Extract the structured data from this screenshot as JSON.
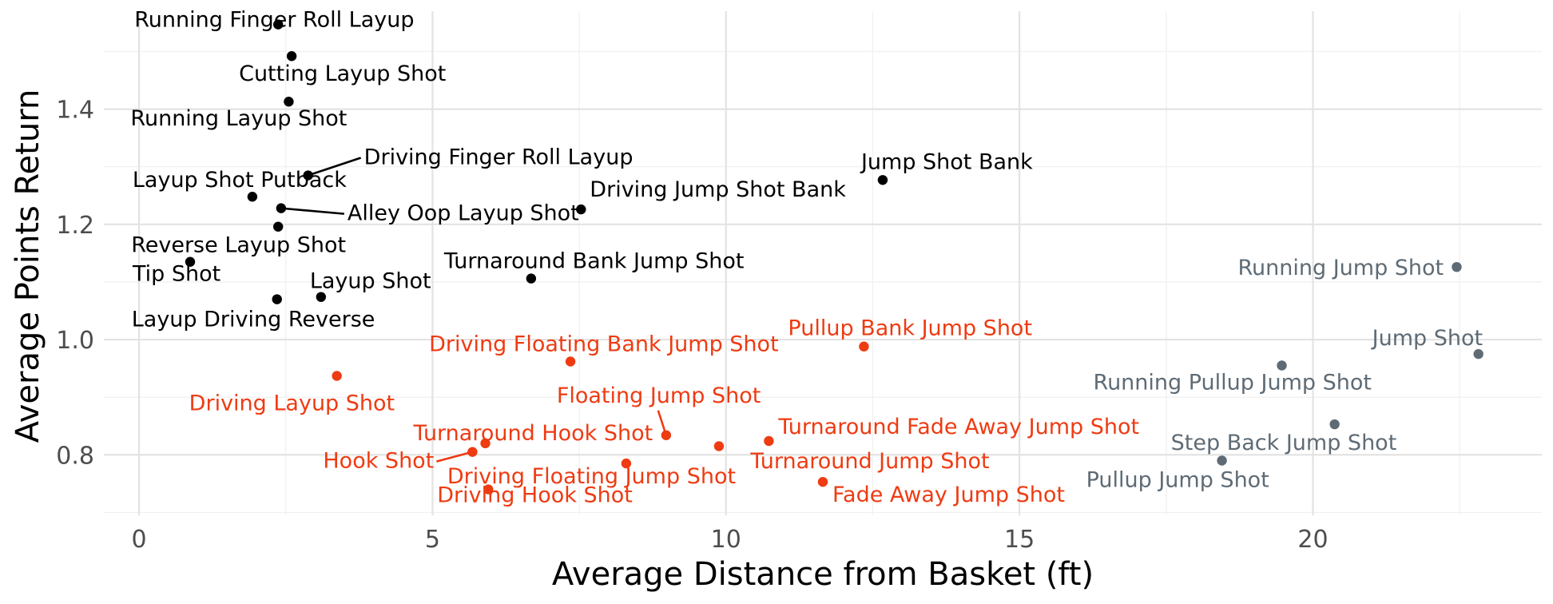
{
  "chart_data": {
    "type": "scatter",
    "xlabel": "Average Distance from Basket (ft)",
    "ylabel": "Average Points Return",
    "xlim": [
      -0.6,
      23.9
    ],
    "ylim": [
      0.695,
      1.57
    ],
    "x_ticks": [
      0,
      5,
      10,
      15,
      20
    ],
    "y_ticks": [
      0.8,
      1.0,
      1.2,
      1.4
    ],
    "x_tick_labels": [
      "0",
      "5",
      "10",
      "15",
      "20"
    ],
    "y_tick_labels": [
      "0.8",
      "1.0",
      "1.2",
      "1.4"
    ],
    "grid": true,
    "legend": "none",
    "group_colors": {
      "high": "#000000",
      "mid": "#ee3b12",
      "long": "#5e6b75"
    },
    "points": [
      {
        "label": "Running Finger Roll Layup",
        "x": 2.37,
        "y": 1.547,
        "group": "high"
      },
      {
        "label": "Cutting Layup Shot",
        "x": 2.6,
        "y": 1.492,
        "group": "high"
      },
      {
        "label": "Running Layup Shot",
        "x": 2.55,
        "y": 1.413,
        "group": "high"
      },
      {
        "label": "Driving Finger Roll Layup",
        "x": 2.88,
        "y": 1.285,
        "group": "high"
      },
      {
        "label": "Layup Shot Putback",
        "x": 1.93,
        "y": 1.248,
        "group": "high"
      },
      {
        "label": "Alley Oop Layup Shot",
        "x": 2.42,
        "y": 1.228,
        "group": "high"
      },
      {
        "label": "Reverse Layup Shot",
        "x": 2.37,
        "y": 1.196,
        "group": "high"
      },
      {
        "label": "Tip Shot",
        "x": 0.87,
        "y": 1.135,
        "group": "high"
      },
      {
        "label": "Layup Driving Reverse",
        "x": 2.35,
        "y": 1.07,
        "group": "high"
      },
      {
        "label": "Layup Shot",
        "x": 3.1,
        "y": 1.074,
        "group": "high"
      },
      {
        "label": "Driving Jump Shot Bank",
        "x": 7.53,
        "y": 1.226,
        "group": "high"
      },
      {
        "label": "Jump Shot Bank",
        "x": 12.67,
        "y": 1.277,
        "group": "high"
      },
      {
        "label": "Turnaround Bank Jump Shot",
        "x": 6.68,
        "y": 1.106,
        "group": "high"
      },
      {
        "label": "Driving Floating Bank Jump Shot",
        "x": 7.35,
        "y": 0.962,
        "group": "mid"
      },
      {
        "label": "Pullup Bank Jump Shot",
        "x": 12.35,
        "y": 0.988,
        "group": "mid"
      },
      {
        "label": "Driving Layup Shot",
        "x": 3.37,
        "y": 0.937,
        "group": "mid"
      },
      {
        "label": "Floating Jump Shot",
        "x": 8.98,
        "y": 0.834,
        "group": "mid"
      },
      {
        "label": "Turnaround Hook Shot",
        "x": 5.9,
        "y": 0.82,
        "group": "mid"
      },
      {
        "label": "Hook Shot",
        "x": 5.68,
        "y": 0.805,
        "group": "mid"
      },
      {
        "label": "Driving Floating Jump Shot",
        "x": 8.3,
        "y": 0.785,
        "group": "mid"
      },
      {
        "label": "Driving Hook Shot",
        "x": 5.95,
        "y": 0.74,
        "group": "mid"
      },
      {
        "label": "",
        "x": 9.88,
        "y": 0.815,
        "group": "mid"
      },
      {
        "label": "Turnaround Fade Away Jump Shot",
        "x": 10.73,
        "y": 0.824,
        "group": "mid"
      },
      {
        "label": "Turnaround Jump Shot",
        "x": 10.73,
        "y": 0.824,
        "group": "mid"
      },
      {
        "label": "Fade Away Jump Shot",
        "x": 11.65,
        "y": 0.753,
        "group": "mid"
      },
      {
        "label": "Running Jump Shot",
        "x": 22.45,
        "y": 1.126,
        "group": "long"
      },
      {
        "label": "Jump Shot",
        "x": 22.82,
        "y": 0.975,
        "group": "long"
      },
      {
        "label": "Running Pullup Jump Shot",
        "x": 19.47,
        "y": 0.955,
        "group": "long"
      },
      {
        "label": "Step Back Jump Shot",
        "x": 20.37,
        "y": 0.853,
        "group": "long"
      },
      {
        "label": "Pullup Jump Shot",
        "x": 18.45,
        "y": 0.79,
        "group": "long"
      }
    ]
  }
}
